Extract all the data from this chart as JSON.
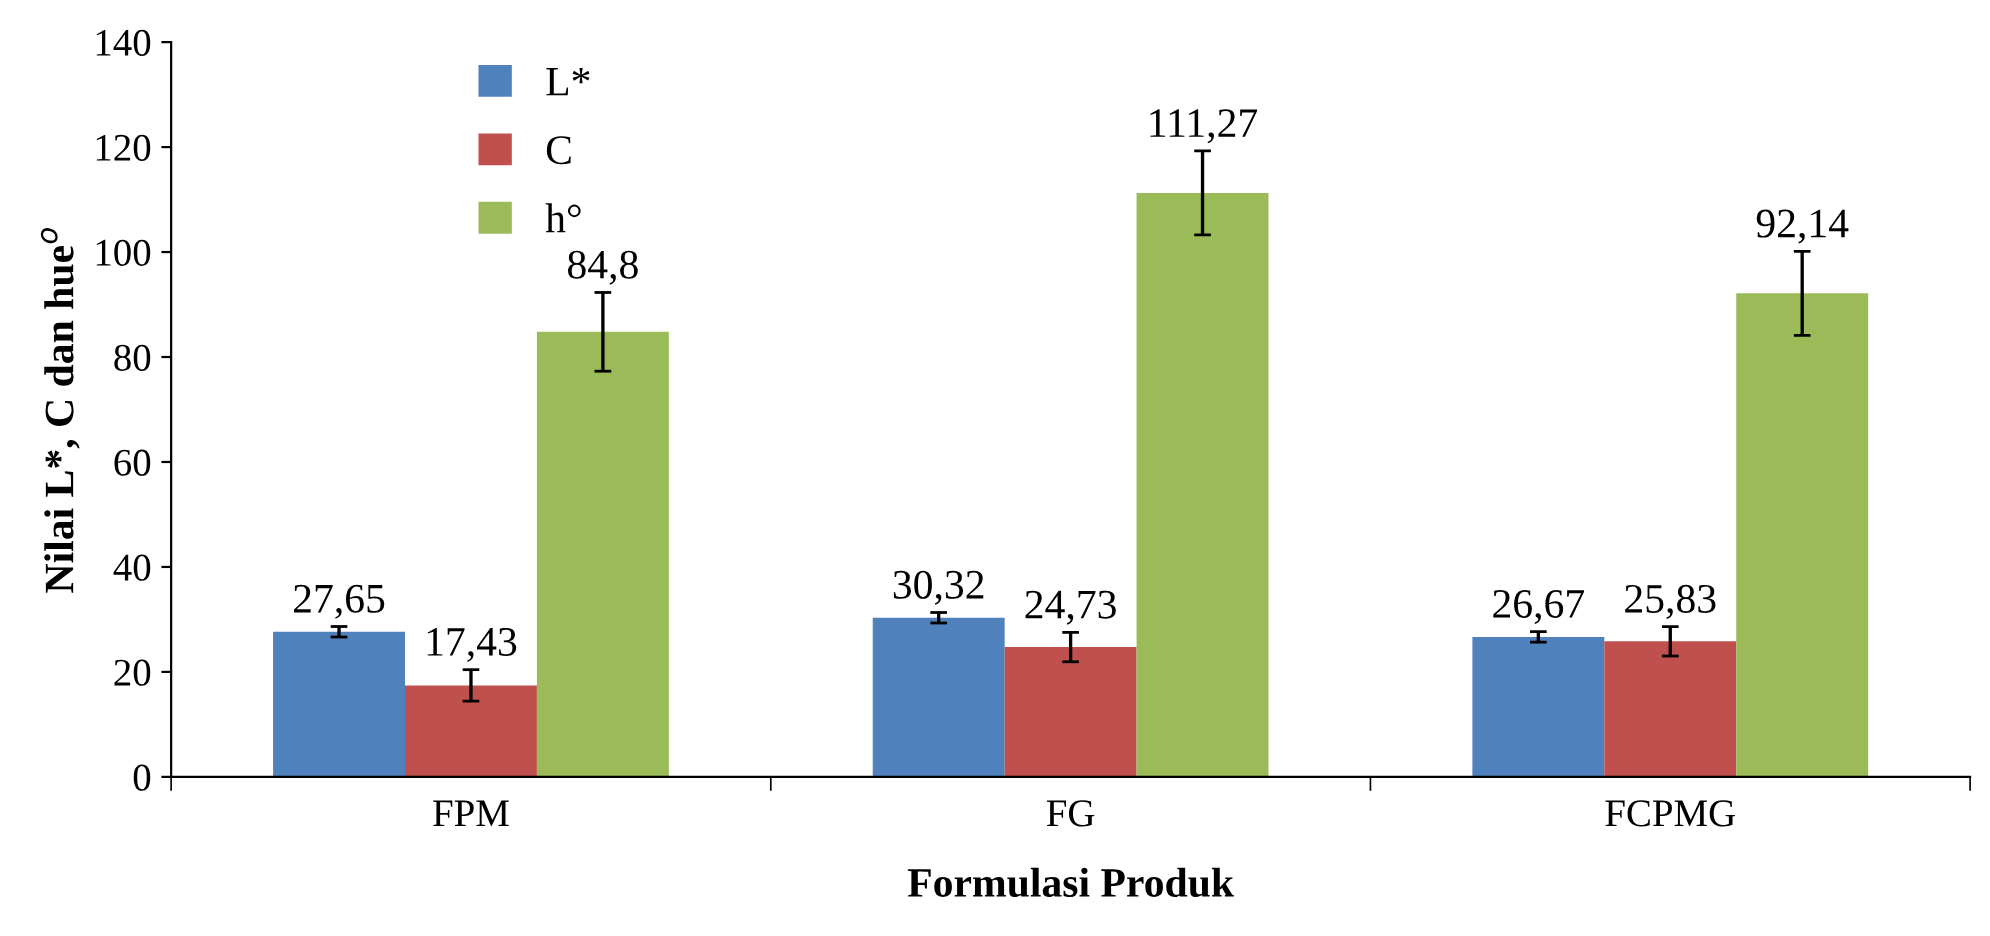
{
  "chart_data": {
    "type": "bar",
    "xlabel": "Formulasi Produk",
    "ylabel": "Nilai L*, C dan hue$^{o}$",
    "categories": [
      "FPM",
      "FG",
      "FCPMG"
    ],
    "series": [
      {
        "name": "L*",
        "color": "#4f81bd",
        "values": [
          27.65,
          30.32,
          26.67
        ],
        "errors": [
          1,
          1,
          1
        ],
        "value_labels": [
          "27,65",
          "30,32",
          "26,67"
        ]
      },
      {
        "name": "C",
        "color": "#c0504d",
        "values": [
          17.43,
          24.73,
          25.83
        ],
        "errors": [
          3,
          2.8,
          2.8
        ],
        "value_labels": [
          "17,43",
          "24,73",
          "25,83"
        ]
      },
      {
        "name": "h°",
        "color": "#9bbb59",
        "values": [
          84.8,
          111.27,
          92.14
        ],
        "errors": [
          7.5,
          8,
          8
        ],
        "value_labels": [
          "84,8",
          "111,27",
          "92,14"
        ]
      }
    ],
    "ylim": [
      0,
      140
    ],
    "yticks": [
      0,
      20,
      40,
      60,
      80,
      100,
      120,
      140
    ],
    "grid": false,
    "legend": "top left"
  }
}
